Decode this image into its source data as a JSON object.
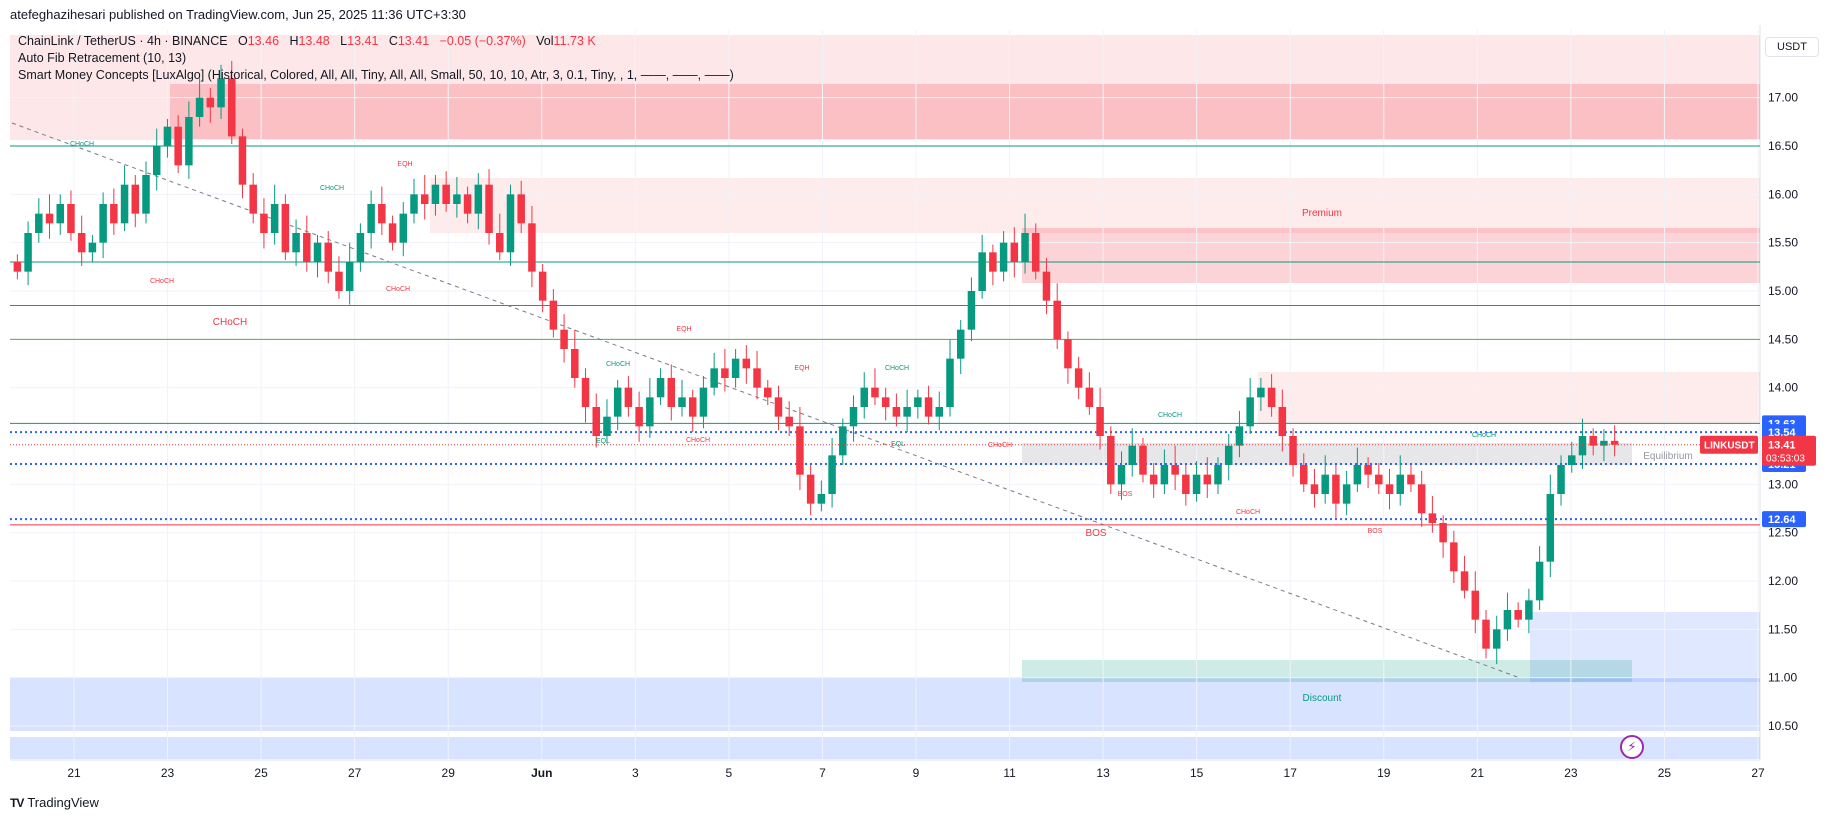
{
  "header": {
    "publisher": "atefeghazihesari published on TradingView.com, Jun 25, 2025 11:36 UTC+3:30"
  },
  "legend": {
    "symbol": "ChainLink / TetherUS · 4h · BINANCE",
    "o_label": "O",
    "o_value": "13.46",
    "h_label": "H",
    "h_value": "13.48",
    "l_label": "L",
    "l_value": "13.41",
    "c_label": "C",
    "c_value": "13.41",
    "change": "−0.05 (−0.37%)",
    "vol_label": "Vol",
    "vol_value": "11.73 K",
    "indicator1": "Auto Fib Retracement (10, 13)",
    "indicator2": "Smart Money Concepts [LuxAlgo] (Historical, Colored, All, All, Tiny, All, All, Small, 50, 10, 10, Atr, 3, 0.1, Tiny, , 1, ——, ——, ——)"
  },
  "price_axis": {
    "unit": "USDT",
    "ticks": [
      "17.00",
      "16.50",
      "16.00",
      "15.50",
      "15.00",
      "14.50",
      "14.00",
      "13.50",
      "13.00",
      "12.50",
      "12.00",
      "11.50",
      "11.00",
      "10.50"
    ],
    "badges": [
      {
        "value": "13.63",
        "color": "#2962ff"
      },
      {
        "value": "13.54",
        "color": "#2962ff"
      },
      {
        "value": "13.21",
        "color": "#2962ff"
      },
      {
        "value": "12.64",
        "color": "#2962ff"
      }
    ],
    "current": {
      "symbol": "LINKUSDT",
      "price": "13.41",
      "countdown": "03:53:03",
      "color": "#f23645"
    }
  },
  "time_axis": {
    "labels": [
      "21",
      "23",
      "25",
      "27",
      "29",
      "Jun",
      "3",
      "5",
      "7",
      "9",
      "11",
      "13",
      "15",
      "17",
      "19",
      "21",
      "23",
      "25",
      "27"
    ]
  },
  "annotations": {
    "premium": "Premium",
    "discount": "Discount",
    "equilibrium": "Equilibrium",
    "choch": "CHoCH",
    "bos": "BOS",
    "eqh": "EQH",
    "eql": "EQL"
  },
  "footer": {
    "logo": "TV",
    "brand": "TradingView"
  },
  "colors": {
    "up": "#089981",
    "down": "#f23645",
    "accent": "#2962ff"
  },
  "chart_data": {
    "type": "candlestick",
    "symbol": "LINKUSDT",
    "timeframe": "4h",
    "ylim": [
      10.2,
      17.7
    ],
    "x_start": "2025-05-20",
    "x_end": "2025-06-28",
    "closes": [
      15.2,
      15.6,
      15.8,
      15.7,
      15.9,
      15.6,
      15.4,
      15.5,
      15.9,
      15.7,
      16.1,
      15.8,
      16.2,
      16.5,
      16.7,
      16.3,
      16.8,
      17.0,
      16.9,
      17.2,
      16.6,
      16.1,
      15.8,
      15.6,
      15.9,
      15.4,
      15.6,
      15.3,
      15.5,
      15.2,
      15.0,
      15.3,
      15.6,
      15.9,
      15.7,
      15.5,
      15.8,
      16.0,
      15.9,
      16.1,
      15.9,
      16.0,
      15.8,
      16.1,
      15.6,
      15.4,
      16.0,
      15.7,
      15.2,
      14.9,
      14.6,
      14.4,
      14.1,
      13.8,
      13.5,
      13.7,
      14.0,
      13.8,
      13.6,
      13.9,
      14.1,
      13.8,
      13.9,
      13.7,
      14.0,
      14.2,
      14.1,
      14.3,
      14.2,
      14.0,
      13.9,
      13.7,
      13.6,
      13.1,
      12.8,
      12.9,
      13.3,
      13.6,
      13.8,
      14.0,
      13.9,
      13.8,
      13.7,
      13.8,
      13.9,
      13.7,
      13.8,
      14.3,
      14.6,
      15.0,
      15.4,
      15.2,
      15.5,
      15.3,
      15.6,
      15.2,
      14.9,
      14.5,
      14.2,
      14.0,
      13.8,
      13.5,
      13.0,
      13.2,
      13.4,
      13.1,
      13.0,
      13.2,
      13.1,
      12.9,
      13.1,
      13.0,
      13.2,
      13.4,
      13.6,
      13.9,
      14.0,
      13.8,
      13.5,
      13.2,
      13.0,
      12.9,
      13.1,
      12.8,
      13.0,
      13.2,
      13.1,
      13.0,
      12.9,
      13.1,
      13.0,
      12.7,
      12.6,
      12.4,
      12.1,
      11.9,
      11.6,
      11.3,
      11.5,
      11.7,
      11.6,
      11.8,
      12.2,
      12.9,
      13.2,
      13.3,
      13.5,
      13.4,
      13.45,
      13.41
    ],
    "key_levels": [
      {
        "price": 16.5,
        "color": "#089981"
      },
      {
        "price": 15.3,
        "color": "#089981"
      },
      {
        "price": 14.5,
        "color": "#4caf50"
      },
      {
        "price": 13.63,
        "color": "#089981"
      },
      {
        "price": 13.54,
        "color": "#2962ff"
      },
      {
        "price": 13.21,
        "color": "#2962ff"
      },
      {
        "price": 12.64,
        "color": "#2962ff"
      },
      {
        "price": 14.85,
        "color": "#f23645"
      },
      {
        "price": 12.58,
        "color": "#f23645"
      }
    ]
  }
}
